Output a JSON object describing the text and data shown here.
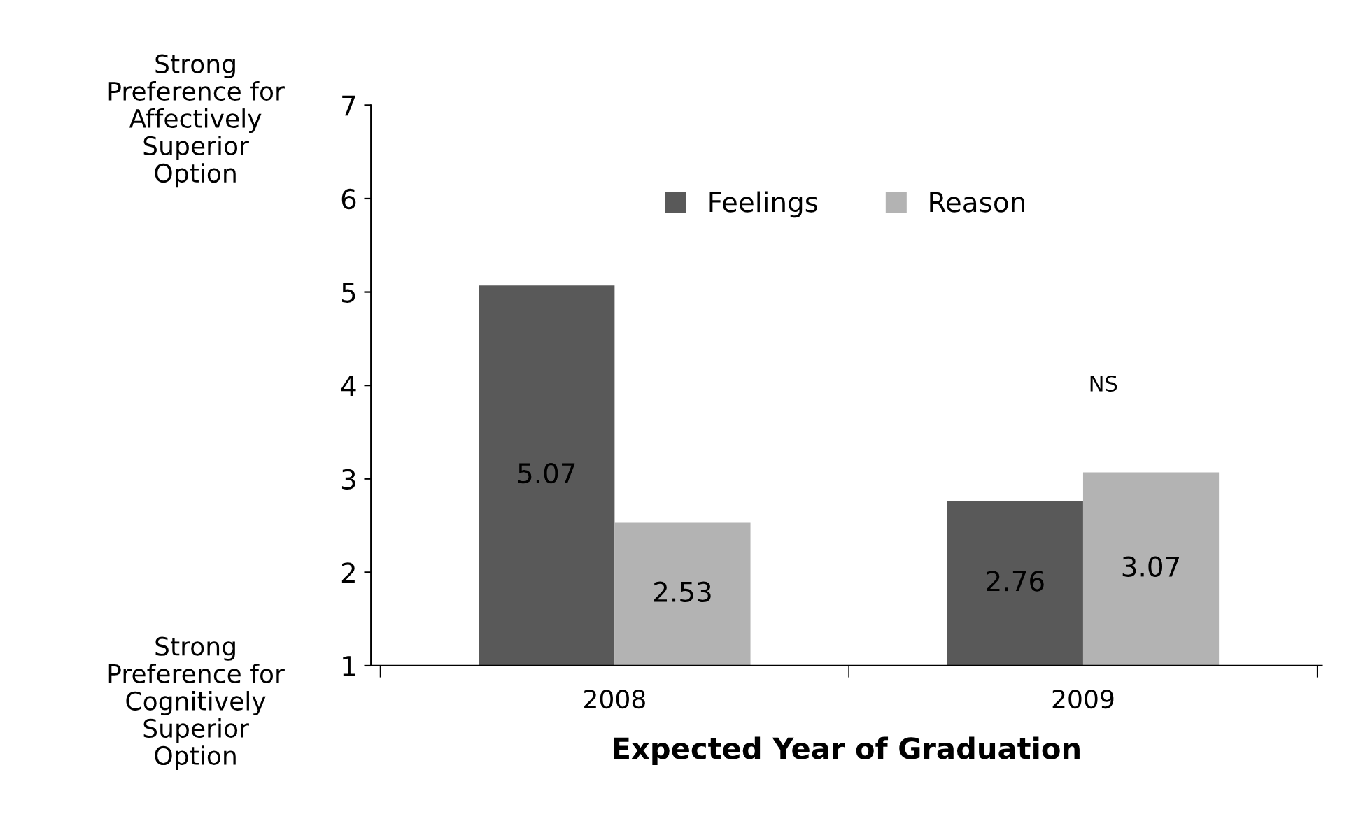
{
  "chart_data": {
    "type": "bar",
    "xlabel": "Expected Year of Graduation",
    "categories": [
      "2008",
      "2009"
    ],
    "series": [
      {
        "name": "Feelings",
        "color": "#595959",
        "values": [
          5.07,
          2.76
        ]
      },
      {
        "name": "Reason",
        "color": "#b3b3b3",
        "values": [
          2.53,
          3.07
        ]
      }
    ],
    "ylim": [
      1,
      7
    ],
    "yticks": [
      1,
      2,
      3,
      4,
      5,
      6,
      7
    ],
    "grid": false,
    "legend": "top",
    "data_labels": true,
    "annotations": [
      "Strong Preference for Affectively Superior Option",
      "Strong Preference for Cognitively Superior Option",
      "NS"
    ]
  }
}
